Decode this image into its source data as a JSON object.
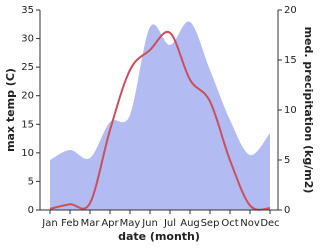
{
  "chart_data": {
    "type": "area_line",
    "categories": [
      "Jan",
      "Feb",
      "Mar",
      "Apr",
      "May",
      "Jun",
      "Jul",
      "Aug",
      "Sep",
      "Oct",
      "Nov",
      "Dec"
    ],
    "x_label": "date (month)",
    "y_label": "max temp (C)",
    "y2_label": "med. precipitation (kg/m2)",
    "ylim": [
      0,
      35
    ],
    "yticks": [
      0,
      5,
      10,
      15,
      20,
      25,
      30,
      35
    ],
    "y2lim": [
      0,
      20
    ],
    "y2ticks": [
      0,
      5,
      10,
      15,
      20
    ],
    "series": [
      {
        "name": "med. precipitation",
        "type": "area",
        "axis": "y2",
        "color": "#b3bcf2",
        "values": [
          5,
          6,
          5.2,
          8.8,
          9.5,
          18.3,
          16.5,
          18.8,
          14,
          9,
          5.5,
          7.7
        ]
      },
      {
        "name": "max temp",
        "type": "line",
        "color": "#c9505c",
        "values": [
          0.2,
          1,
          1.2,
          14,
          24.5,
          28,
          31,
          22.8,
          19,
          8.7,
          0.8,
          0.3
        ]
      }
    ]
  }
}
